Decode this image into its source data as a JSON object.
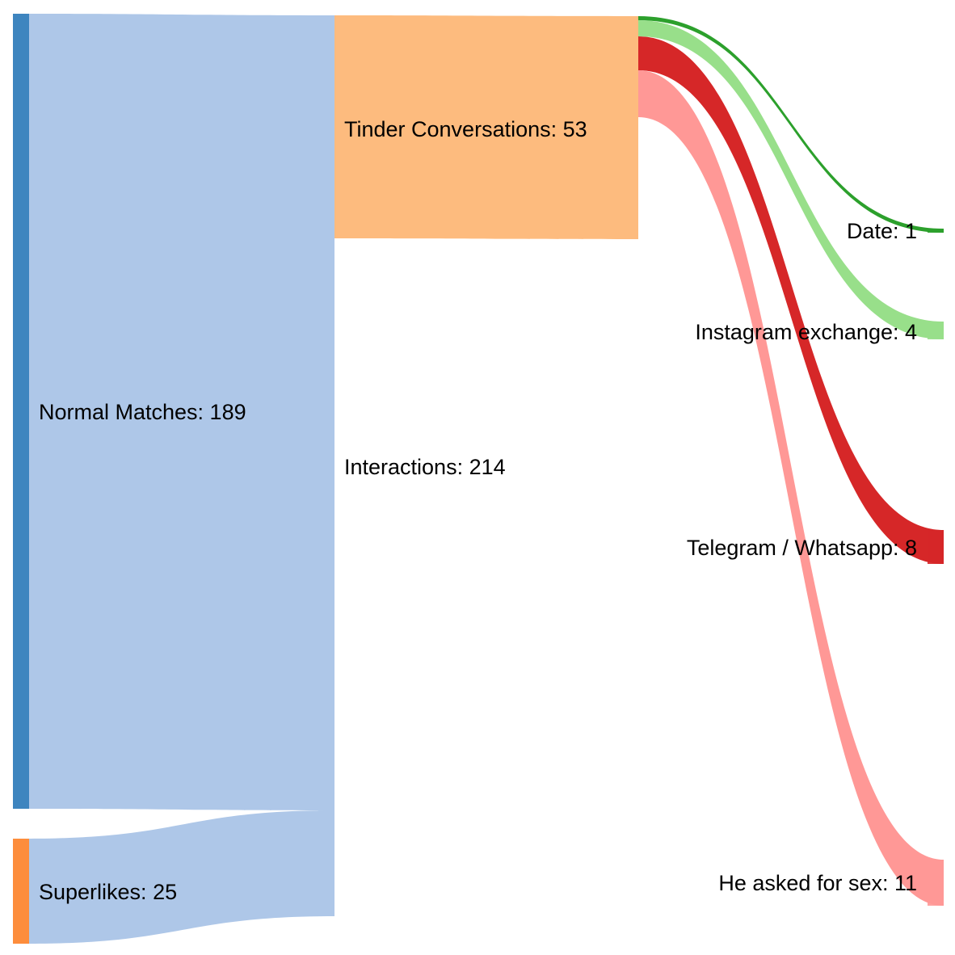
{
  "chart_data": {
    "type": "sankey",
    "colors": {
      "normal_node": "#3e85bf",
      "superlikes_node": "#fd8d3c",
      "interactions_flow": "#aec7e8",
      "tinder_node": "#fdbb7e",
      "date": "#2ca02c",
      "instagram": "#98df8a",
      "telegram": "#d62728",
      "sex": "#ff9896"
    },
    "nodes": [
      {
        "id": "normal",
        "label": "Normal Matches: 189"
      },
      {
        "id": "superlikes",
        "label": "Superlikes: 25"
      },
      {
        "id": "interactions",
        "label": "Interactions: 214"
      },
      {
        "id": "tinder",
        "label": "Tinder Conversations: 53"
      },
      {
        "id": "date",
        "label": "Date: 1"
      },
      {
        "id": "instagram",
        "label": "Instagram exchange: 4"
      },
      {
        "id": "telegram",
        "label": "Telegram / Whatsapp: 8"
      },
      {
        "id": "sex",
        "label": "He asked for sex: 11"
      }
    ],
    "links": [
      {
        "source": "normal",
        "target": "interactions",
        "value": 189
      },
      {
        "source": "superlikes",
        "target": "interactions",
        "value": 25
      },
      {
        "source": "interactions",
        "target": "tinder",
        "value": 53
      },
      {
        "source": "tinder",
        "target": "date",
        "value": 1
      },
      {
        "source": "tinder",
        "target": "instagram",
        "value": 4
      },
      {
        "source": "tinder",
        "target": "telegram",
        "value": 8
      },
      {
        "source": "tinder",
        "target": "sex",
        "value": 11
      }
    ]
  }
}
